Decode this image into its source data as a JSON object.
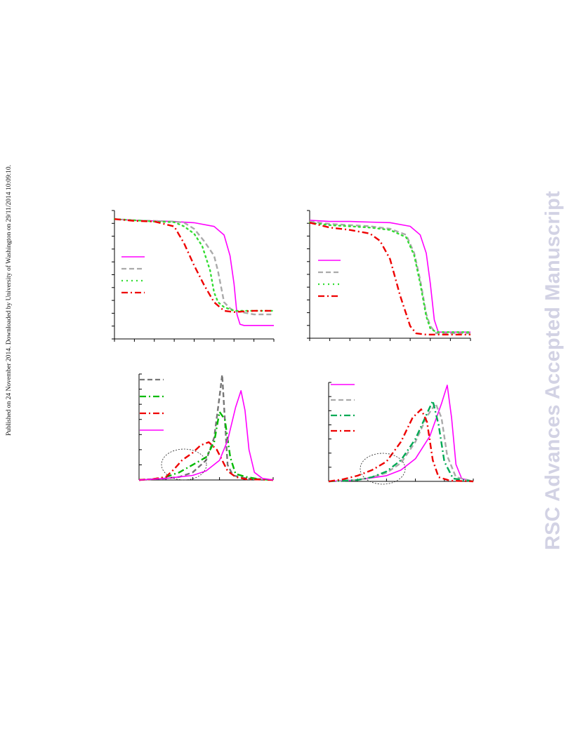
{
  "page": {
    "side_note": "Published on 24 November 2014. Downloaded by University of Washington on 29/11/2014 10:09:10.",
    "watermark": "RSC Advances Accepted Manuscript",
    "watermark_color": "#d2d2e4"
  },
  "chart_data": [
    {
      "type": "line",
      "panel": "top-left",
      "title": "",
      "xlabel": "",
      "ylabel": "",
      "xlim": [
        0,
        8
      ],
      "ylim": [
        0,
        10.5
      ],
      "legend": "left",
      "series": [
        {
          "color": "#ff00ff",
          "style": "solid",
          "x": [
            0,
            1,
            2,
            3,
            4,
            5,
            5.5,
            5.8,
            6,
            6.15,
            6.3,
            6.5,
            7,
            8
          ],
          "y": [
            9.8,
            9.7,
            9.65,
            9.6,
            9.5,
            9.2,
            8.5,
            6.8,
            4.5,
            2,
            1.2,
            1.1,
            1.1,
            1.1
          ]
        },
        {
          "color": "#aaaaaa",
          "style": "dashed",
          "x": [
            0,
            1,
            2,
            3,
            3.5,
            4,
            4.5,
            5,
            5.2,
            5.5,
            5.8,
            6,
            7,
            8
          ],
          "y": [
            9.8,
            9.7,
            9.65,
            9.6,
            9.5,
            9,
            8,
            6.8,
            5.5,
            3,
            2.5,
            2.3,
            2,
            2
          ]
        },
        {
          "color": "#33dd33",
          "style": "dotted",
          "x": [
            0,
            1,
            2,
            3,
            3.5,
            4,
            4.4,
            4.8,
            5,
            5.2,
            5.5,
            6,
            7,
            8
          ],
          "y": [
            9.8,
            9.7,
            9.6,
            9.55,
            9.2,
            8.6,
            7.6,
            5.6,
            3.8,
            3,
            2.6,
            2.3,
            2.3,
            2.3
          ]
        },
        {
          "color": "#ee0000",
          "style": "dash-dot",
          "x": [
            0,
            1,
            2,
            3,
            3.5,
            4,
            4.5,
            5,
            5.5,
            6,
            7,
            8
          ],
          "y": [
            9.8,
            9.65,
            9.6,
            9.2,
            7.8,
            6,
            4.4,
            3,
            2.3,
            2.2,
            2.3,
            2.3
          ]
        }
      ]
    },
    {
      "type": "line",
      "panel": "top-right",
      "title": "",
      "xlabel": "",
      "ylabel": "",
      "xlim": [
        0,
        8
      ],
      "ylim": [
        0,
        10.5
      ],
      "legend": "left",
      "series": [
        {
          "color": "#ff00ff",
          "style": "solid",
          "x": [
            0,
            1,
            2,
            3,
            4,
            5,
            5.5,
            5.8,
            6,
            6.2,
            6.4,
            7,
            8
          ],
          "y": [
            9.7,
            9.6,
            9.6,
            9.55,
            9.5,
            9.2,
            8.5,
            7,
            4.5,
            1.5,
            0.5,
            0.5,
            0.5
          ]
        },
        {
          "color": "#aaaaaa",
          "style": "dashed",
          "x": [
            0,
            1,
            2,
            3,
            4,
            4.8,
            5.2,
            5.5,
            5.8,
            6,
            6.3,
            7,
            8
          ],
          "y": [
            9.6,
            9.4,
            9.3,
            9.2,
            9,
            8.5,
            7,
            4.8,
            2,
            1,
            0.4,
            0.4,
            0.4
          ]
        },
        {
          "color": "#33dd33",
          "style": "dotted",
          "x": [
            0,
            1,
            2,
            3,
            4,
            4.8,
            5.2,
            5.5,
            5.8,
            6,
            6.3,
            7,
            8
          ],
          "y": [
            9.5,
            9.3,
            9.2,
            9.1,
            8.9,
            8.3,
            6.8,
            4.5,
            1.8,
            0.8,
            0.5,
            0.5,
            0.5
          ]
        },
        {
          "color": "#ee0000",
          "style": "dash-dot",
          "x": [
            0,
            1,
            2,
            3,
            3.5,
            4,
            4.5,
            4.8,
            5,
            5.3,
            5.8,
            7,
            8
          ],
          "y": [
            9.5,
            9.1,
            8.9,
            8.6,
            8,
            6.5,
            3.5,
            2,
            1,
            0.4,
            0.3,
            0.3,
            0.3
          ]
        }
      ]
    },
    {
      "type": "line",
      "panel": "bottom-left",
      "title": "",
      "xlabel": "",
      "ylabel": "",
      "xlim": [
        0,
        5
      ],
      "ylim": [
        0,
        7
      ],
      "legend": "top-left",
      "annotation": "dotted ellipse around the low shoulder",
      "series": [
        {
          "color": "#777777",
          "style": "dashed",
          "x": [
            0,
            0.5,
            1,
            1.5,
            2,
            2.5,
            2.8,
            3,
            3.1,
            3.2,
            3.3,
            3.5,
            4,
            4.5,
            5
          ],
          "y": [
            0,
            0.05,
            0.1,
            0.2,
            0.5,
            1.3,
            2.8,
            5.5,
            6.95,
            4,
            1,
            0.3,
            0.1,
            0.05,
            0
          ]
        },
        {
          "color": "#00bb00",
          "style": "dash-dot",
          "x": [
            0,
            0.5,
            1,
            1.5,
            2,
            2.5,
            2.8,
            3,
            3.2,
            3.4,
            3.6,
            4,
            4.5,
            5
          ],
          "y": [
            0,
            0.05,
            0.2,
            0.5,
            1,
            1.5,
            2.5,
            4.5,
            4,
            1.5,
            0.4,
            0.2,
            0.05,
            0
          ]
        },
        {
          "color": "#ee0000",
          "style": "dash-dot",
          "x": [
            0,
            0.5,
            1,
            1.3,
            1.6,
            2,
            2.3,
            2.6,
            2.9,
            3.1,
            3.3,
            3.6,
            4,
            5
          ],
          "y": [
            0,
            0.05,
            0.2,
            0.7,
            1.3,
            1.8,
            2.3,
            2.5,
            2,
            1.3,
            0.6,
            0.2,
            0.05,
            0
          ]
        },
        {
          "color": "#ff00ff",
          "style": "solid",
          "x": [
            0,
            1,
            2,
            2.5,
            3,
            3.3,
            3.6,
            3.8,
            3.95,
            4.1,
            4.3,
            4.6,
            5
          ],
          "y": [
            0,
            0.1,
            0.3,
            0.6,
            1.3,
            2.6,
            4.8,
            5.9,
            4.6,
            2,
            0.5,
            0.1,
            0
          ]
        }
      ]
    },
    {
      "type": "line",
      "panel": "bottom-right",
      "title": "",
      "xlabel": "",
      "ylabel": "",
      "xlim": [
        0,
        5
      ],
      "ylim": [
        0,
        7
      ],
      "legend": "top-left",
      "annotation": "dotted ellipse around the low shoulder",
      "series": [
        {
          "color": "#ff00ff",
          "style": "solid",
          "x": [
            0,
            1,
            2,
            2.5,
            3,
            3.5,
            3.9,
            4.1,
            4.25,
            4.4,
            4.6,
            5
          ],
          "y": [
            0,
            0.1,
            0.4,
            0.8,
            1.6,
            3.2,
            5.5,
            6.8,
            4.5,
            1.2,
            0.2,
            0
          ]
        },
        {
          "color": "#aaaaaa",
          "style": "dashed",
          "x": [
            0,
            1,
            1.5,
            2,
            2.5,
            3,
            3.4,
            3.7,
            3.9,
            4.1,
            4.4,
            5
          ],
          "y": [
            0,
            0.1,
            0.3,
            0.6,
            1.3,
            2.8,
            4.6,
            5.5,
            4.5,
            1.8,
            0.3,
            0
          ]
        },
        {
          "color": "#00aa55",
          "style": "dash-dot",
          "x": [
            0,
            1,
            1.5,
            2,
            2.5,
            3,
            3.4,
            3.6,
            3.8,
            4,
            4.3,
            5
          ],
          "y": [
            0,
            0.1,
            0.3,
            0.7,
            1.5,
            3,
            4.8,
            5.7,
            4,
            1.4,
            0.2,
            0
          ]
        },
        {
          "color": "#ee0000",
          "style": "dash-dot",
          "x": [
            0,
            0.5,
            1,
            1.5,
            2,
            2.5,
            2.9,
            3.2,
            3.4,
            3.6,
            3.8,
            4.2,
            5
          ],
          "y": [
            0,
            0.15,
            0.4,
            0.8,
            1.4,
            2.8,
            4.5,
            5.1,
            4.2,
            1.5,
            0.3,
            0.05,
            0
          ]
        }
      ]
    }
  ]
}
